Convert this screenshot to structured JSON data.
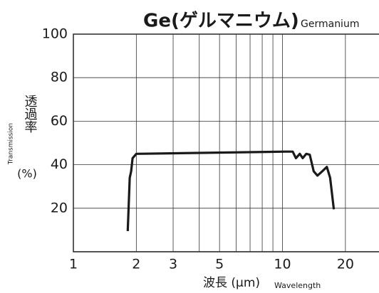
{
  "chart_data": {
    "type": "line",
    "title": "Ge(ゲルマニウム)",
    "subtitle": "Germanium",
    "y_label_en": "Transmission",
    "y_label": "透過率",
    "y_unit": "(%)",
    "x_label": "波長 (μm)",
    "x_label_en": "Wavelength",
    "xscale": "log",
    "xlim": [
      1,
      28.5
    ],
    "ylim": [
      0,
      100
    ],
    "xticks": [
      1,
      2,
      3,
      5,
      10,
      20
    ],
    "xminor": [
      4,
      6,
      7,
      8,
      9
    ],
    "yticks": [
      20,
      40,
      60,
      80,
      100
    ],
    "grid": true,
    "series": [
      {
        "color": "#1a1a1a",
        "x": [
          1.82,
          1.86,
          1.89,
          1.92,
          2.0,
          10.3,
          11.2,
          11.6,
          12.1,
          12.5,
          13.0,
          13.5,
          14.1,
          14.7,
          15.5,
          16.3,
          16.9,
          17.6
        ],
        "values": [
          9.5,
          34,
          37,
          43,
          45,
          46,
          46,
          43,
          45,
          43,
          45,
          44.6,
          37,
          35,
          37,
          39,
          34,
          19.5
        ]
      }
    ]
  }
}
